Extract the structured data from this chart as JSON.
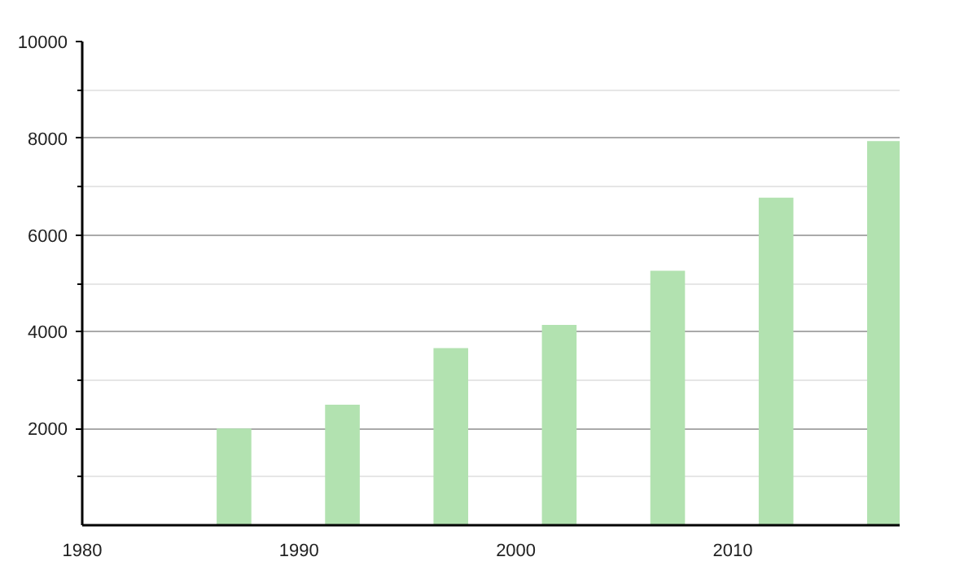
{
  "chart_data": {
    "type": "bar",
    "x": [
      1987,
      1992,
      1997,
      2002,
      2007,
      2012,
      2017
    ],
    "series": [
      {
        "color": "#b2e2b0",
        "values": [
          2000,
          2490,
          3660,
          4140,
          5260,
          6770,
          7940
        ]
      }
    ],
    "xlim": [
      1980,
      2017.7
    ],
    "xticks": [
      1980,
      1990,
      2000,
      2010
    ],
    "ylim": [
      0,
      10000
    ],
    "yticks": [
      {
        "value": 1000,
        "label": null
      },
      2000,
      {
        "value": 3000,
        "label": null
      },
      4000,
      {
        "value": 5000,
        "label": null
      },
      6000,
      {
        "value": 7000,
        "label": null
      },
      8000,
      {
        "value": 9000,
        "label": null
      },
      10000
    ],
    "grid": "y"
  }
}
